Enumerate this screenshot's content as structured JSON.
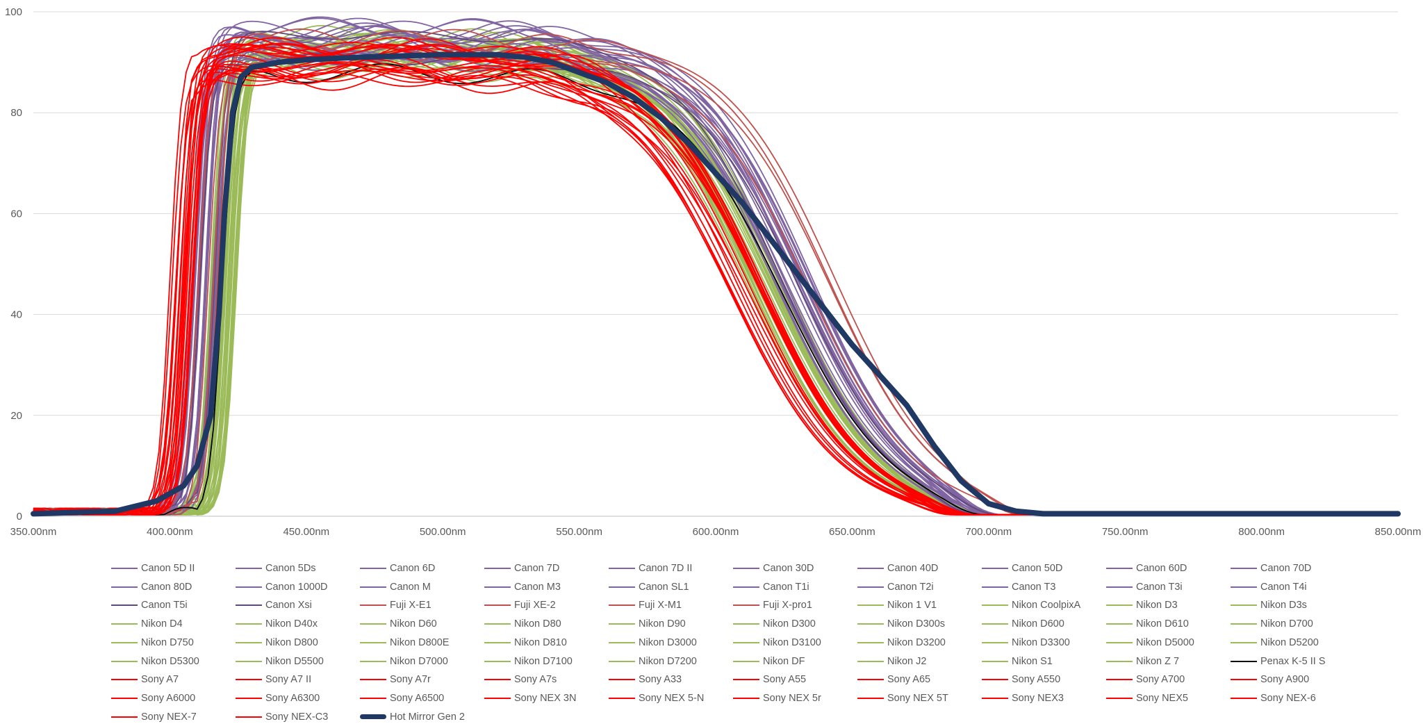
{
  "chart_data": {
    "type": "line",
    "title": "",
    "xlabel": "",
    "ylabel": "",
    "xlim": [
      350,
      850
    ],
    "ylim": [
      0,
      100
    ],
    "x_ticks": [
      "350.00nm",
      "400.00nm",
      "450.00nm",
      "500.00nm",
      "550.00nm",
      "600.00nm",
      "650.00nm",
      "700.00nm",
      "750.00nm",
      "800.00nm",
      "850.00nm"
    ],
    "y_ticks": [
      "0",
      "20",
      "40",
      "60",
      "80",
      "100"
    ],
    "grid": "horizontal",
    "legend_position": "bottom",
    "group_colors": {
      "canon": "#8064a2",
      "canon_dark": "#60497a",
      "fuji": "#c0504d",
      "nikon": "#9bbb59",
      "pentax": "#000000",
      "sony": "#ff0000",
      "hot_mirror": "#1f3864"
    },
    "group_profiles": {
      "canon": {
        "rise_nm": 412,
        "peak": 94,
        "cutoff_50_nm": 628,
        "tail_nm": 690
      },
      "fuji": {
        "rise_nm": 413,
        "peak": 94,
        "cutoff_50_nm": 640,
        "tail_nm": 705
      },
      "nikon": {
        "rise_nm": 420,
        "peak": 92,
        "cutoff_50_nm": 618,
        "tail_nm": 685
      },
      "pentax": {
        "rise_nm": 415,
        "peak": 91,
        "cutoff_50_nm": 622,
        "tail_nm": 690
      },
      "sony": {
        "rise_nm": 405,
        "peak": 90,
        "cutoff_50_nm": 612,
        "tail_nm": 683
      }
    },
    "series": [
      {
        "name": "Canon 5D II",
        "group": "canon"
      },
      {
        "name": "Canon 5Ds",
        "group": "canon"
      },
      {
        "name": "Canon 6D",
        "group": "canon"
      },
      {
        "name": "Canon 7D",
        "group": "canon"
      },
      {
        "name": "Canon 7D II",
        "group": "canon"
      },
      {
        "name": "Canon 30D",
        "group": "canon"
      },
      {
        "name": "Canon 40D",
        "group": "canon"
      },
      {
        "name": "Canon 50D",
        "group": "canon"
      },
      {
        "name": "Canon 60D",
        "group": "canon"
      },
      {
        "name": "Canon 70D",
        "group": "canon"
      },
      {
        "name": "Canon 80D",
        "group": "canon"
      },
      {
        "name": "Canon 1000D",
        "group": "canon"
      },
      {
        "name": "Canon M",
        "group": "canon"
      },
      {
        "name": "Canon M3",
        "group": "canon"
      },
      {
        "name": "Canon SL1",
        "group": "canon"
      },
      {
        "name": "Canon T1i",
        "group": "canon"
      },
      {
        "name": "Canon T2i",
        "group": "canon"
      },
      {
        "name": "Canon T3",
        "group": "canon"
      },
      {
        "name": "Canon T3i",
        "group": "canon"
      },
      {
        "name": "Canon T4i",
        "group": "canon"
      },
      {
        "name": "Canon T5i",
        "group": "canon_dark"
      },
      {
        "name": "Canon Xsi",
        "group": "canon_dark"
      },
      {
        "name": "Fuji X-E1",
        "group": "fuji"
      },
      {
        "name": "Fuji XE-2",
        "group": "fuji"
      },
      {
        "name": "Fuji X-M1",
        "group": "fuji"
      },
      {
        "name": "Fuji X-pro1",
        "group": "fuji"
      },
      {
        "name": "Nikon 1 V1",
        "group": "nikon"
      },
      {
        "name": "Nikon CoolpixA",
        "group": "nikon"
      },
      {
        "name": "Nikon D3",
        "group": "nikon"
      },
      {
        "name": "Nikon D3s",
        "group": "nikon"
      },
      {
        "name": "Nikon D4",
        "group": "nikon"
      },
      {
        "name": "Nikon D40x",
        "group": "nikon"
      },
      {
        "name": "Nikon D60",
        "group": "nikon"
      },
      {
        "name": "Nikon D80",
        "group": "nikon"
      },
      {
        "name": "Nikon D90",
        "group": "nikon"
      },
      {
        "name": "Nikon D300",
        "group": "nikon"
      },
      {
        "name": "Nikon D300s",
        "group": "nikon"
      },
      {
        "name": "Nikon D600",
        "group": "nikon"
      },
      {
        "name": "Nikon D610",
        "group": "nikon"
      },
      {
        "name": "Nikon D700",
        "group": "nikon"
      },
      {
        "name": "Nikon D750",
        "group": "nikon"
      },
      {
        "name": "Nikon D800",
        "group": "nikon"
      },
      {
        "name": "Nikon D800E",
        "group": "nikon"
      },
      {
        "name": "Nikon D810",
        "group": "nikon"
      },
      {
        "name": "Nikon D3000",
        "group": "nikon"
      },
      {
        "name": "Nikon D3100",
        "group": "nikon"
      },
      {
        "name": "Nikon D3200",
        "group": "nikon"
      },
      {
        "name": "Nikon D3300",
        "group": "nikon"
      },
      {
        "name": "Nikon D5000",
        "group": "nikon"
      },
      {
        "name": "Nikon D5200",
        "group": "nikon"
      },
      {
        "name": "Nikon D5300",
        "group": "nikon"
      },
      {
        "name": "Nikon D5500",
        "group": "nikon"
      },
      {
        "name": "Nikon D7000",
        "group": "nikon"
      },
      {
        "name": "Nikon D7100",
        "group": "nikon"
      },
      {
        "name": "Nikon D7200",
        "group": "nikon"
      },
      {
        "name": "Nikon DF",
        "group": "nikon"
      },
      {
        "name": "Nikon J2",
        "group": "nikon"
      },
      {
        "name": "Nikon S1",
        "group": "nikon"
      },
      {
        "name": "Nikon Z 7",
        "group": "nikon"
      },
      {
        "name": "Penax K-5 II S",
        "group": "pentax"
      },
      {
        "name": "Sony A7",
        "group": "sony"
      },
      {
        "name": "Sony A7 II",
        "group": "sony"
      },
      {
        "name": "Sony A7r",
        "group": "sony"
      },
      {
        "name": "Sony A7s",
        "group": "sony"
      },
      {
        "name": "Sony A33",
        "group": "sony"
      },
      {
        "name": "Sony A55",
        "group": "sony"
      },
      {
        "name": "Sony A65",
        "group": "sony"
      },
      {
        "name": "Sony A550",
        "group": "sony"
      },
      {
        "name": "Sony A700",
        "group": "sony"
      },
      {
        "name": "Sony A900",
        "group": "sony"
      },
      {
        "name": "Sony A6000",
        "group": "sony"
      },
      {
        "name": "Sony A6300",
        "group": "sony"
      },
      {
        "name": "Sony A6500",
        "group": "sony"
      },
      {
        "name": "Sony NEX 3N",
        "group": "sony"
      },
      {
        "name": "Sony NEX 5-N",
        "group": "sony"
      },
      {
        "name": "Sony NEX 5r",
        "group": "sony"
      },
      {
        "name": "Sony NEX 5T",
        "group": "sony"
      },
      {
        "name": "Sony NEX3",
        "group": "sony"
      },
      {
        "name": "Sony NEX5",
        "group": "sony"
      },
      {
        "name": "Sony NEX-6",
        "group": "sony"
      },
      {
        "name": "Sony NEX-7",
        "group": "sony"
      },
      {
        "name": "Sony NEX-C3",
        "group": "sony"
      },
      {
        "name": "Hot Mirror Gen 2",
        "group": "hot_mirror",
        "emphasis": true,
        "x": [
          350,
          380,
          395,
          405,
          410,
          415,
          418,
          420,
          423,
          426,
          430,
          440,
          450,
          470,
          500,
          520,
          530,
          540,
          550,
          560,
          570,
          580,
          590,
          600,
          610,
          620,
          630,
          640,
          650,
          660,
          670,
          680,
          690,
          700,
          710,
          720,
          750,
          800,
          850
        ],
        "y": [
          0.5,
          1,
          3,
          6,
          10,
          20,
          40,
          60,
          80,
          87,
          89,
          90,
          90.5,
          91,
          91.5,
          91.5,
          91,
          90,
          88,
          86,
          83,
          79,
          74,
          68,
          62,
          55,
          48,
          41,
          34,
          28,
          22,
          14,
          7,
          2.5,
          1,
          0.5,
          0.5,
          0.5,
          0.5
        ]
      }
    ]
  }
}
